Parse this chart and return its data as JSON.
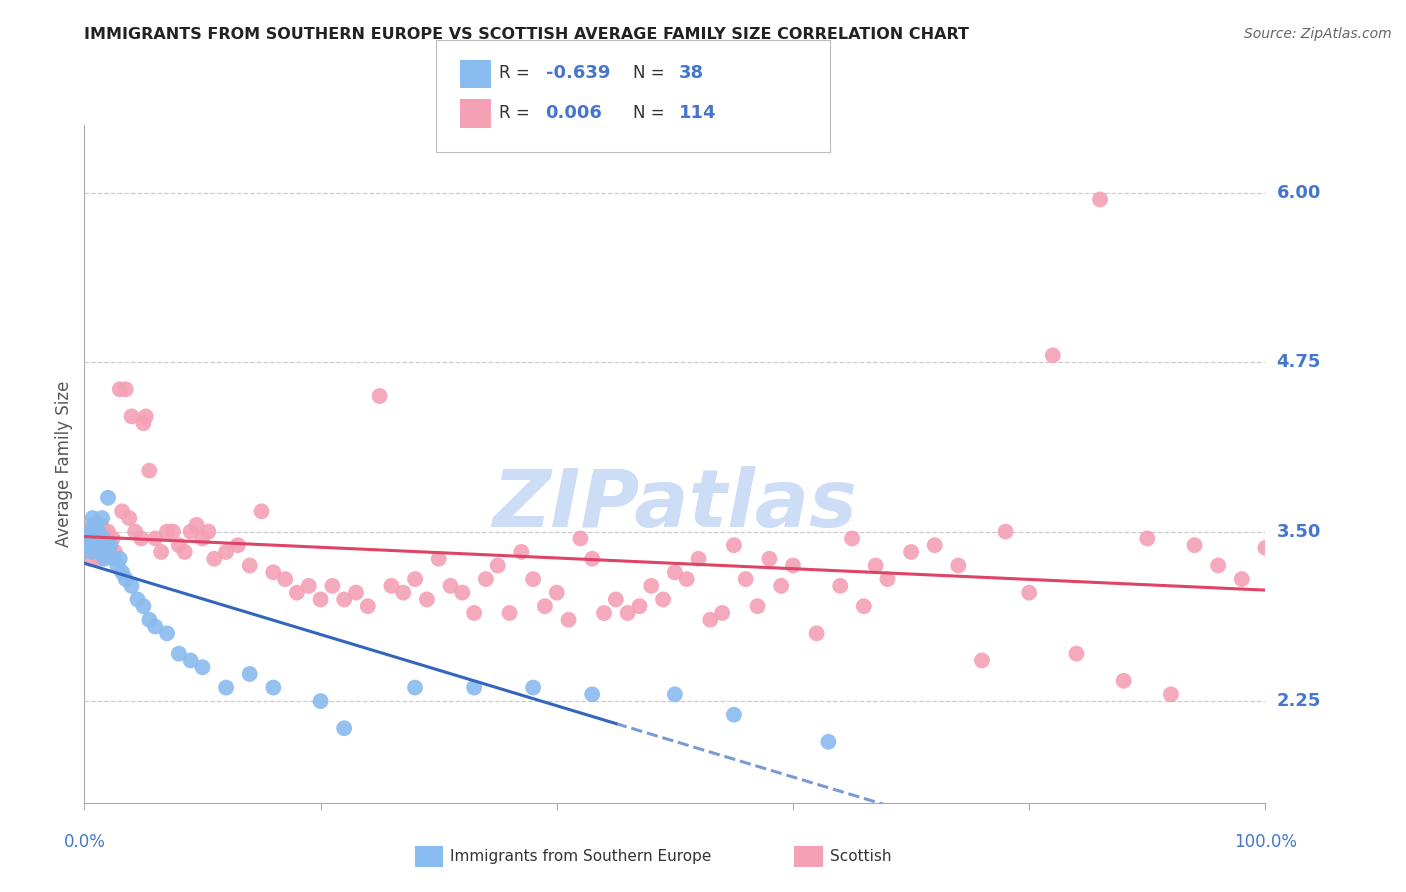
{
  "title": "IMMIGRANTS FROM SOUTHERN EUROPE VS SCOTTISH AVERAGE FAMILY SIZE CORRELATION CHART",
  "source": "Source: ZipAtlas.com",
  "ylabel": "Average Family Size",
  "yticks": [
    2.25,
    3.5,
    4.75,
    6.0
  ],
  "ylim": [
    1.5,
    6.5
  ],
  "xlim": [
    0.0,
    100.0
  ],
  "blue_color": "#88bbee",
  "pink_color": "#f4a0b5",
  "blue_line_color": "#3366bb",
  "pink_line_color": "#dd4466",
  "grid_color": "#cccccc",
  "title_color": "#222222",
  "tick_label_color": "#4477cc",
  "watermark_text": "ZIPatlas",
  "watermark_color": "#ccddf5",
  "blue_scatter": [
    [
      0.2,
      3.45
    ],
    [
      0.4,
      3.4
    ],
    [
      0.5,
      3.5
    ],
    [
      0.6,
      3.35
    ],
    [
      0.7,
      3.6
    ],
    [
      0.8,
      3.45
    ],
    [
      0.9,
      3.5
    ],
    [
      1.0,
      3.55
    ],
    [
      1.1,
      3.4
    ],
    [
      1.2,
      3.5
    ],
    [
      1.3,
      3.45
    ],
    [
      1.4,
      3.35
    ],
    [
      1.5,
      3.6
    ],
    [
      1.6,
      3.45
    ],
    [
      1.7,
      3.3
    ],
    [
      1.8,
      3.4
    ],
    [
      2.0,
      3.75
    ],
    [
      2.2,
      3.4
    ],
    [
      2.5,
      3.3
    ],
    [
      2.8,
      3.25
    ],
    [
      3.0,
      3.3
    ],
    [
      3.2,
      3.2
    ],
    [
      3.5,
      3.15
    ],
    [
      4.0,
      3.1
    ],
    [
      4.5,
      3.0
    ],
    [
      5.0,
      2.95
    ],
    [
      5.5,
      2.85
    ],
    [
      6.0,
      2.8
    ],
    [
      7.0,
      2.75
    ],
    [
      8.0,
      2.6
    ],
    [
      9.0,
      2.55
    ],
    [
      10.0,
      2.5
    ],
    [
      12.0,
      2.35
    ],
    [
      14.0,
      2.45
    ],
    [
      16.0,
      2.35
    ],
    [
      20.0,
      2.25
    ],
    [
      22.0,
      2.05
    ],
    [
      28.0,
      2.35
    ],
    [
      33.0,
      2.35
    ],
    [
      38.0,
      2.35
    ],
    [
      43.0,
      2.3
    ],
    [
      50.0,
      2.3
    ],
    [
      55.0,
      2.15
    ],
    [
      63.0,
      1.95
    ]
  ],
  "pink_scatter": [
    [
      0.2,
      3.5
    ],
    [
      0.4,
      3.45
    ],
    [
      0.5,
      3.3
    ],
    [
      0.7,
      3.55
    ],
    [
      0.8,
      3.4
    ],
    [
      0.9,
      3.5
    ],
    [
      1.0,
      3.35
    ],
    [
      1.1,
      3.45
    ],
    [
      1.2,
      3.4
    ],
    [
      1.3,
      3.3
    ],
    [
      1.4,
      3.55
    ],
    [
      1.5,
      3.45
    ],
    [
      1.6,
      3.5
    ],
    [
      1.8,
      3.35
    ],
    [
      2.0,
      3.5
    ],
    [
      2.2,
      3.4
    ],
    [
      2.4,
      3.45
    ],
    [
      2.6,
      3.35
    ],
    [
      3.0,
      4.55
    ],
    [
      3.2,
      3.65
    ],
    [
      3.5,
      4.55
    ],
    [
      3.8,
      3.6
    ],
    [
      4.0,
      4.35
    ],
    [
      4.3,
      3.5
    ],
    [
      4.8,
      3.45
    ],
    [
      5.0,
      4.3
    ],
    [
      5.2,
      4.35
    ],
    [
      5.5,
      3.95
    ],
    [
      6.0,
      3.45
    ],
    [
      6.5,
      3.35
    ],
    [
      7.0,
      3.5
    ],
    [
      7.5,
      3.5
    ],
    [
      8.0,
      3.4
    ],
    [
      8.5,
      3.35
    ],
    [
      9.0,
      3.5
    ],
    [
      9.5,
      3.55
    ],
    [
      10.0,
      3.45
    ],
    [
      10.5,
      3.5
    ],
    [
      11.0,
      3.3
    ],
    [
      12.0,
      3.35
    ],
    [
      13.0,
      3.4
    ],
    [
      14.0,
      3.25
    ],
    [
      15.0,
      3.65
    ],
    [
      16.0,
      3.2
    ],
    [
      17.0,
      3.15
    ],
    [
      18.0,
      3.05
    ],
    [
      19.0,
      3.1
    ],
    [
      20.0,
      3.0
    ],
    [
      21.0,
      3.1
    ],
    [
      22.0,
      3.0
    ],
    [
      23.0,
      3.05
    ],
    [
      24.0,
      2.95
    ],
    [
      25.0,
      4.5
    ],
    [
      26.0,
      3.1
    ],
    [
      27.0,
      3.05
    ],
    [
      28.0,
      3.15
    ],
    [
      29.0,
      3.0
    ],
    [
      30.0,
      3.3
    ],
    [
      31.0,
      3.1
    ],
    [
      32.0,
      3.05
    ],
    [
      33.0,
      2.9
    ],
    [
      34.0,
      3.15
    ],
    [
      35.0,
      3.25
    ],
    [
      36.0,
      2.9
    ],
    [
      37.0,
      3.35
    ],
    [
      38.0,
      3.15
    ],
    [
      39.0,
      2.95
    ],
    [
      40.0,
      3.05
    ],
    [
      41.0,
      2.85
    ],
    [
      42.0,
      3.45
    ],
    [
      43.0,
      3.3
    ],
    [
      44.0,
      2.9
    ],
    [
      45.0,
      3.0
    ],
    [
      46.0,
      2.9
    ],
    [
      47.0,
      2.95
    ],
    [
      48.0,
      3.1
    ],
    [
      49.0,
      3.0
    ],
    [
      50.0,
      3.2
    ],
    [
      51.0,
      3.15
    ],
    [
      52.0,
      3.3
    ],
    [
      53.0,
      2.85
    ],
    [
      54.0,
      2.9
    ],
    [
      55.0,
      3.4
    ],
    [
      56.0,
      3.15
    ],
    [
      57.0,
      2.95
    ],
    [
      58.0,
      3.3
    ],
    [
      59.0,
      3.1
    ],
    [
      60.0,
      3.25
    ],
    [
      62.0,
      2.75
    ],
    [
      64.0,
      3.1
    ],
    [
      65.0,
      3.45
    ],
    [
      66.0,
      2.95
    ],
    [
      67.0,
      3.25
    ],
    [
      68.0,
      3.15
    ],
    [
      70.0,
      3.35
    ],
    [
      72.0,
      3.4
    ],
    [
      74.0,
      3.25
    ],
    [
      76.0,
      2.55
    ],
    [
      78.0,
      3.5
    ],
    [
      80.0,
      3.05
    ],
    [
      82.0,
      4.8
    ],
    [
      84.0,
      2.6
    ],
    [
      86.0,
      5.95
    ],
    [
      88.0,
      2.4
    ],
    [
      90.0,
      3.45
    ],
    [
      92.0,
      2.3
    ],
    [
      94.0,
      3.4
    ],
    [
      96.0,
      3.25
    ],
    [
      98.0,
      3.15
    ],
    [
      100.0,
      3.38
    ]
  ],
  "blue_solid_end": 45,
  "blue_dash_end": 70,
  "xtick_positions": [
    0,
    20,
    40,
    60,
    80,
    100
  ]
}
